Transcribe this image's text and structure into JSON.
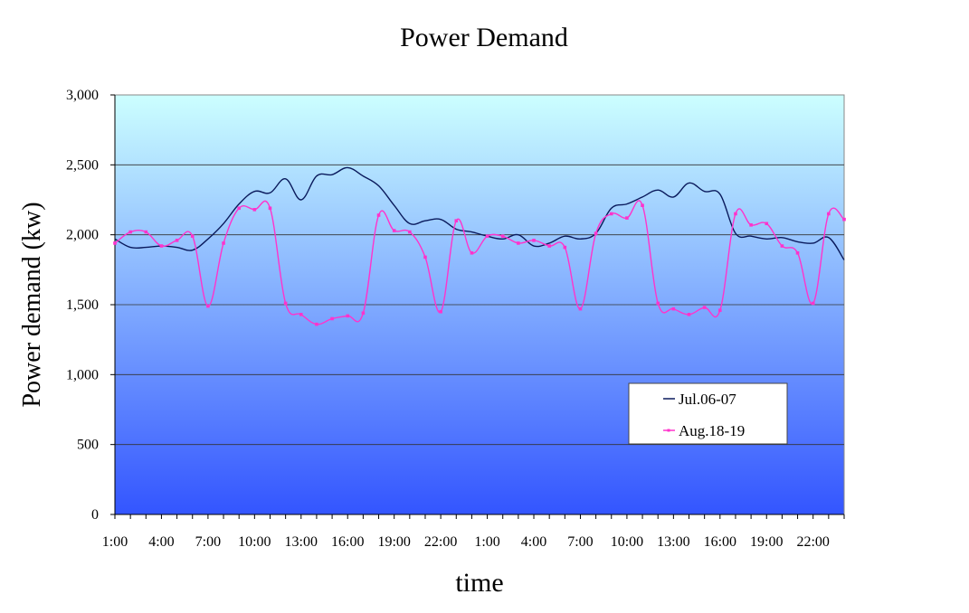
{
  "chart_data": {
    "type": "line",
    "title": "Power Demand",
    "xlabel": "time",
    "ylabel": "Power demand (kw)",
    "ylim": [
      0,
      3000
    ],
    "yticks": [
      0,
      500,
      1000,
      1500,
      2000,
      2500,
      3000
    ],
    "ytick_labels": [
      "0",
      "500",
      "1,000",
      "1,500",
      "2,000",
      "2,500",
      "3,000"
    ],
    "xtick_labels": [
      "1:00",
      "4:00",
      "7:00",
      "10:00",
      "13:00",
      "16:00",
      "19:00",
      "22:00",
      "1:00",
      "4:00",
      "7:00",
      "10:00",
      "13:00",
      "16:00",
      "19:00",
      "22:00"
    ],
    "xtick_hours": [
      1,
      4,
      7,
      10,
      13,
      16,
      19,
      22,
      25,
      28,
      31,
      34,
      37,
      40,
      43,
      46
    ],
    "x_hours": [
      1,
      2,
      3,
      4,
      5,
      6,
      7,
      8,
      9,
      10,
      11,
      12,
      13,
      14,
      15,
      16,
      17,
      18,
      19,
      20,
      21,
      22,
      23,
      24,
      25,
      26,
      27,
      28,
      29,
      30,
      31,
      32,
      33,
      34,
      35,
      36,
      37,
      38,
      39,
      40,
      41,
      42,
      43,
      44,
      45,
      46,
      47,
      48
    ],
    "grid": true,
    "legend_position": "lower-right",
    "background_gradient": [
      "#ccffff",
      "#3355ff"
    ],
    "series": [
      {
        "name": "Jul.06-07",
        "color": "#0a1a5c",
        "marker": false,
        "values": [
          1970,
          1910,
          1910,
          1920,
          1910,
          1890,
          1970,
          2080,
          2220,
          2310,
          2300,
          2400,
          2250,
          2420,
          2430,
          2480,
          2420,
          2350,
          2210,
          2080,
          2100,
          2110,
          2040,
          2020,
          1990,
          1970,
          2000,
          1920,
          1940,
          1990,
          1970,
          2010,
          2190,
          2220,
          2270,
          2320,
          2270,
          2370,
          2310,
          2290,
          2010,
          1990,
          1970,
          1980,
          1950,
          1940,
          1980,
          1820
        ]
      },
      {
        "name": "Aug.18-19",
        "color": "#ff33cc",
        "marker": true,
        "values": [
          1940,
          2020,
          2020,
          1920,
          1960,
          1990,
          1490,
          1940,
          2190,
          2180,
          2190,
          1510,
          1430,
          1360,
          1400,
          1420,
          1440,
          2140,
          2030,
          2020,
          1840,
          1450,
          2100,
          1870,
          1990,
          1990,
          1940,
          1960,
          1920,
          1910,
          1470,
          2010,
          2150,
          2120,
          2210,
          1510,
          1470,
          1430,
          1480,
          1460,
          2150,
          2070,
          2080,
          1920,
          1870,
          1510,
          2150,
          2110
        ]
      }
    ]
  }
}
